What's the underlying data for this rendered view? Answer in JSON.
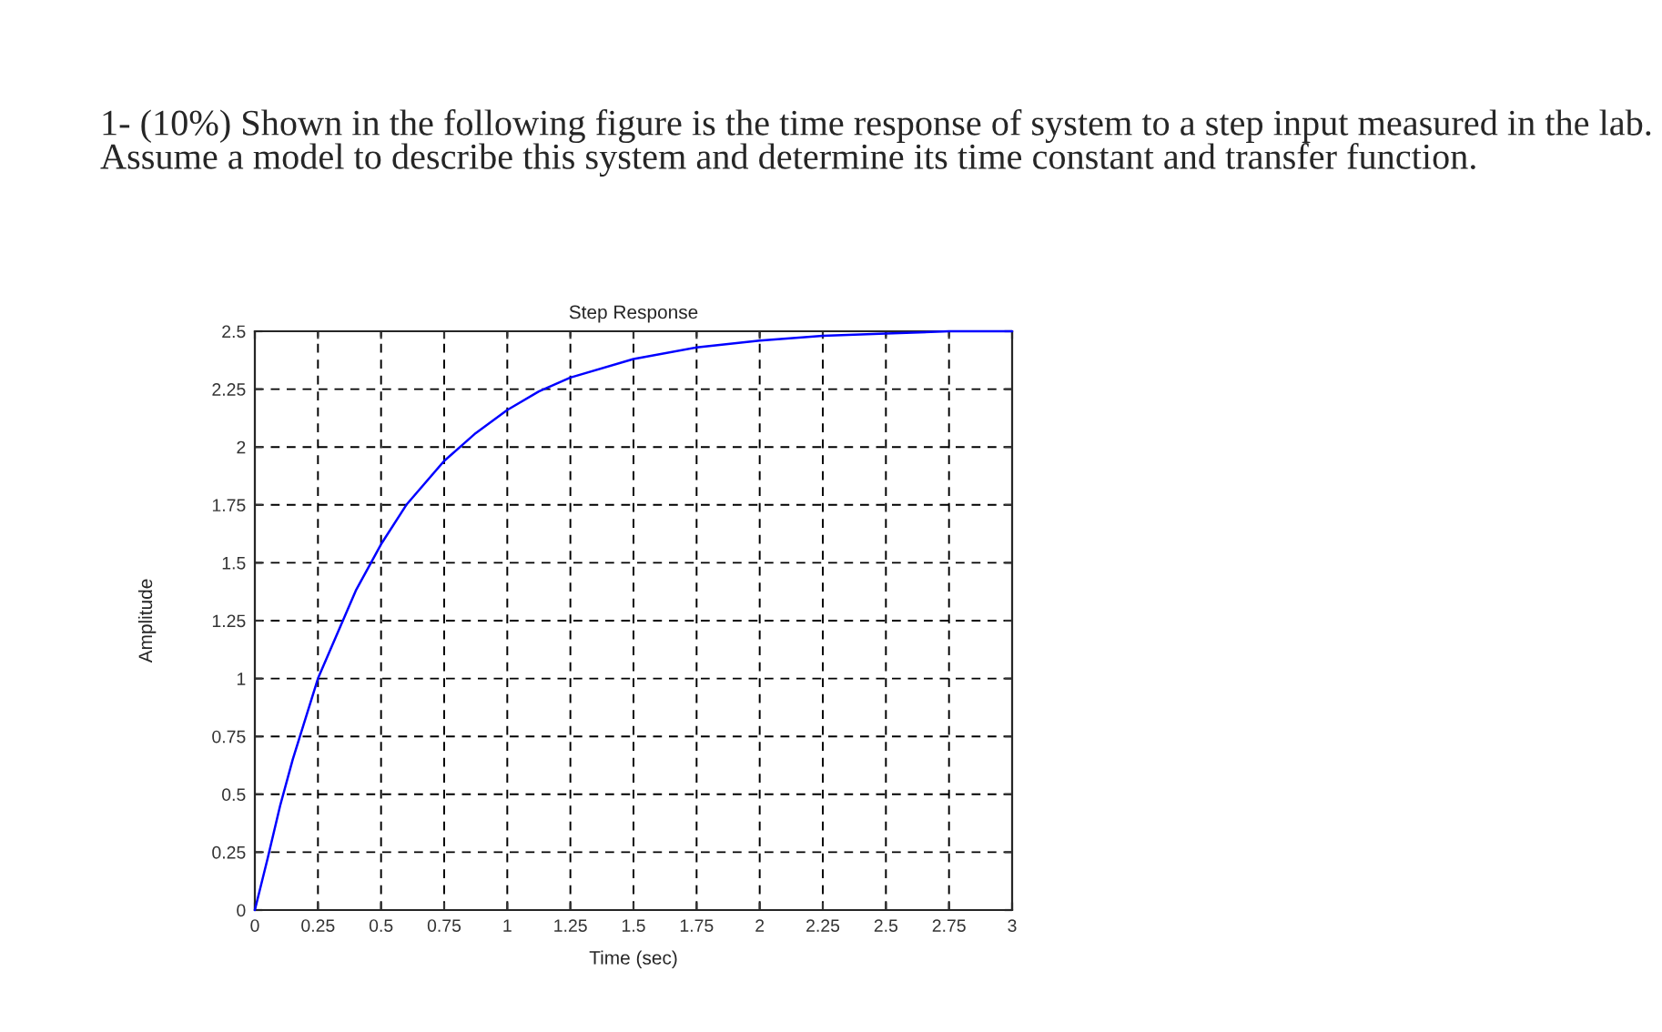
{
  "chart_data": {
    "type": "line",
    "title": "Step Response",
    "xlabel": "Time (sec)",
    "ylabel": "Amplitude",
    "annotations": [
      "1- (10%) Shown in the following figure is the time response of system to a step input measured in the lab. Assume a model to describe this system and determine its time constant and transfer function."
    ],
    "x": [
      0,
      0.05,
      0.1,
      0.15,
      0.25,
      0.4,
      0.5,
      0.6,
      0.75,
      0.875,
      1.0,
      1.125,
      1.25,
      1.5,
      1.75,
      2.0,
      2.25,
      2.5,
      2.75,
      3.0
    ],
    "series": [
      {
        "color": "#0000ff",
        "values": [
          0,
          0.22,
          0.45,
          0.65,
          1.0,
          1.38,
          1.58,
          1.75,
          1.94,
          2.06,
          2.16,
          2.24,
          2.3,
          2.38,
          2.43,
          2.46,
          2.48,
          2.49,
          2.5,
          2.5
        ]
      }
    ],
    "xlim": [
      0,
      3
    ],
    "ylim": [
      0,
      2.5
    ],
    "xticks": [
      0,
      0.25,
      0.5,
      0.75,
      1,
      1.25,
      1.5,
      1.75,
      2,
      2.25,
      2.5,
      2.75,
      3
    ],
    "yticks": [
      0,
      0.25,
      0.5,
      0.75,
      1,
      1.25,
      1.5,
      1.75,
      2,
      2.25,
      2.5
    ],
    "grid": true,
    "legend": false,
    "marker": "none",
    "line_style": "solid"
  }
}
